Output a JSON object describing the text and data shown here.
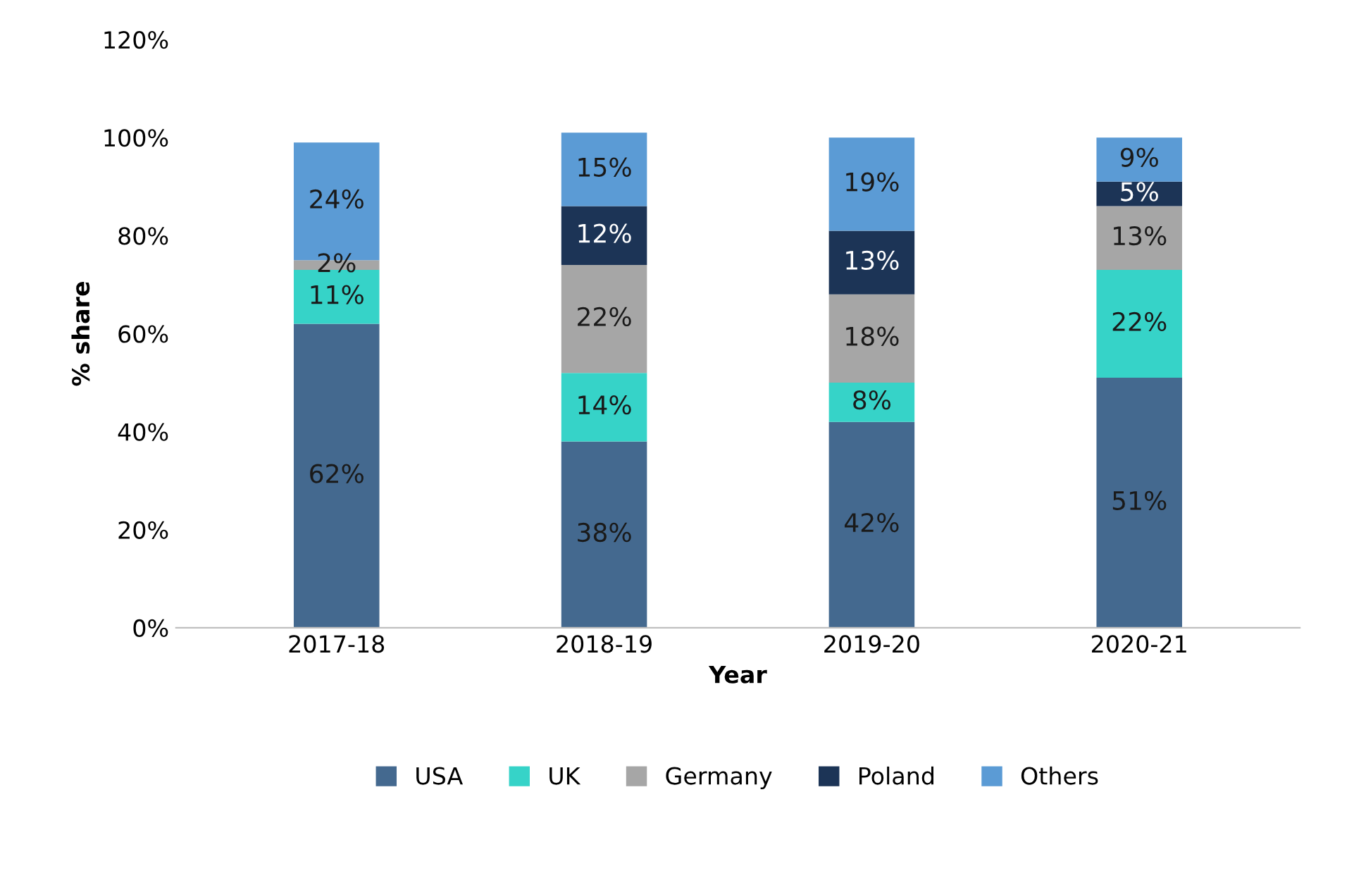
{
  "chart_data": {
    "type": "bar",
    "stacked": true,
    "xlabel": "Year",
    "ylabel": "% share",
    "categories": [
      "2017-18",
      "2018-19",
      "2019-20",
      "2020-21"
    ],
    "series": [
      {
        "name": "USA",
        "color": "#44698f",
        "values": [
          62,
          38,
          42,
          51
        ],
        "value_labels": [
          "62%",
          "38%",
          "42%",
          "51%"
        ]
      },
      {
        "name": "UK",
        "color": "#36d3c8",
        "values": [
          11,
          14,
          8,
          22
        ],
        "value_labels": [
          "11%",
          "14%",
          "8%",
          "22%"
        ]
      },
      {
        "name": "Germany",
        "color": "#a6a6a6",
        "values": [
          2,
          22,
          18,
          13
        ],
        "value_labels": [
          "2%",
          "22%",
          "18%",
          "13%"
        ]
      },
      {
        "name": "Poland",
        "color": "#1c3456",
        "values": [
          null,
          12,
          13,
          5
        ],
        "value_labels": [
          null,
          "12%",
          "13%",
          "5%"
        ]
      },
      {
        "name": "Others",
        "color": "#5b9bd5",
        "values": [
          24,
          15,
          19,
          9
        ],
        "value_labels": [
          "24%",
          "15%",
          "19%",
          "9%"
        ]
      }
    ],
    "ylim": [
      0,
      120
    ],
    "yticks": [
      {
        "value": 0,
        "label": "0%"
      },
      {
        "value": 20,
        "label": "20%"
      },
      {
        "value": 40,
        "label": "40%"
      },
      {
        "value": 60,
        "label": "60%"
      },
      {
        "value": 80,
        "label": "80%"
      },
      {
        "value": 100,
        "label": "100%"
      },
      {
        "value": 120,
        "label": "120%"
      }
    ],
    "grid": false,
    "legend": "bottom"
  }
}
